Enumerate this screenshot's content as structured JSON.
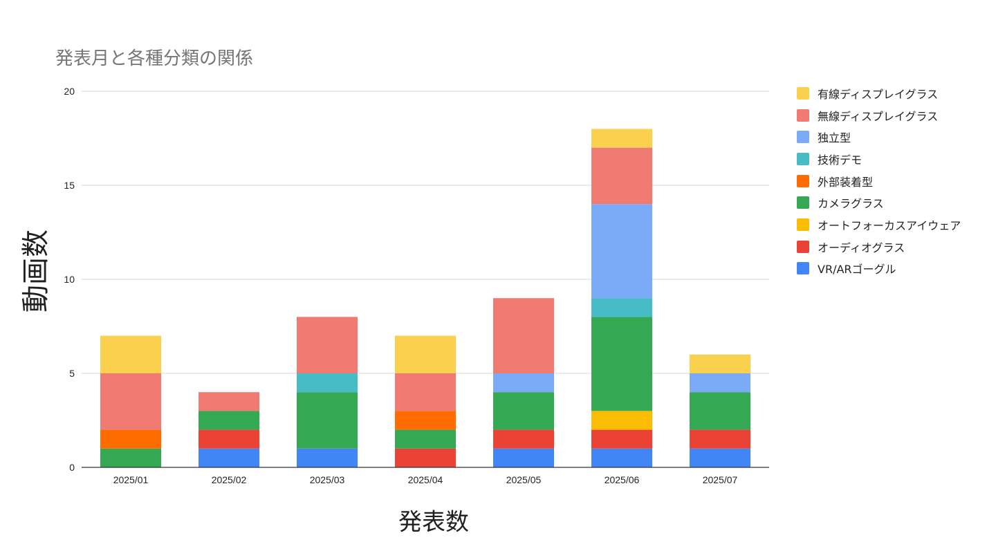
{
  "chart_data": {
    "type": "bar",
    "stacked": true,
    "title": "発表月と各種分類の関係",
    "xlabel": "発表数",
    "ylabel": "動画数",
    "ylim": [
      0,
      20
    ],
    "yticks": [
      0,
      5,
      10,
      15,
      20
    ],
    "grid": true,
    "legend_position": "right",
    "categories": [
      "2025/01",
      "2025/02",
      "2025/03",
      "2025/04",
      "2025/05",
      "2025/06",
      "2025/07"
    ],
    "series": [
      {
        "name": "VR/ARゴーグル",
        "color": "#4285f4",
        "values": [
          0,
          1,
          1,
          0,
          1,
          1,
          1
        ]
      },
      {
        "name": "オーディオグラス",
        "color": "#ea4335",
        "values": [
          0,
          1,
          0,
          1,
          1,
          1,
          1
        ]
      },
      {
        "name": "オートフォーカスアイウェア",
        "color": "#fbbc04",
        "values": [
          0,
          0,
          0,
          0,
          0,
          1,
          0
        ]
      },
      {
        "name": "カメラグラス",
        "color": "#34a853",
        "values": [
          1,
          1,
          3,
          1,
          2,
          5,
          2
        ]
      },
      {
        "name": "外部装着型",
        "color": "#ff6d01",
        "values": [
          1,
          0,
          0,
          1,
          0,
          0,
          0
        ]
      },
      {
        "name": "技術デモ",
        "color": "#46bdc6",
        "values": [
          0,
          0,
          1,
          0,
          0,
          1,
          0
        ]
      },
      {
        "name": "独立型",
        "color": "#7baaf7",
        "values": [
          0,
          0,
          0,
          0,
          1,
          5,
          1
        ]
      },
      {
        "name": "無線ディスプレイグラス",
        "color": "#f07b72",
        "values": [
          3,
          1,
          3,
          2,
          4,
          3,
          0
        ]
      },
      {
        "name": "有線ディスプレイグラス",
        "color": "#fcd04f",
        "values": [
          2,
          0,
          0,
          2,
          0,
          1,
          1
        ]
      }
    ]
  }
}
